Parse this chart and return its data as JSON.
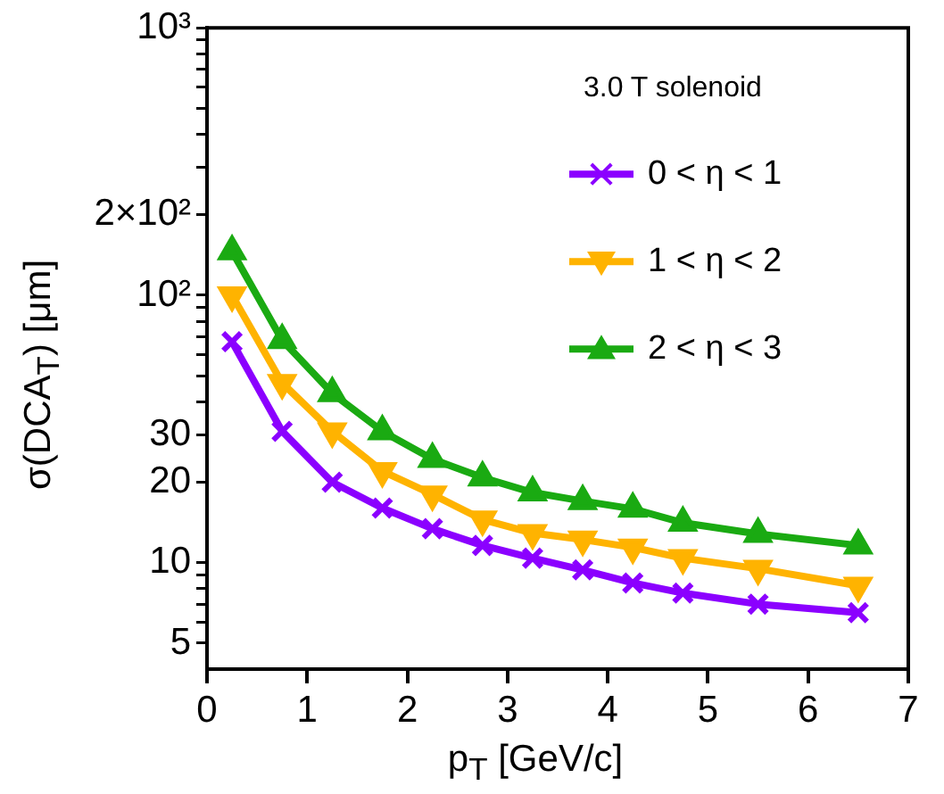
{
  "chart_data": {
    "type": "line",
    "xlabel": "p$_{T}$ [GeV/c]",
    "ylabel": "σ(DCA$_{T}$) [μm]",
    "legend_title": "3.0 T solenoid",
    "legend": "top right",
    "grid": false,
    "log": "y",
    "line_style": "solid",
    "x": [
      0.25,
      0.75,
      1.25,
      1.75,
      2.25,
      2.75,
      3.25,
      3.75,
      4.25,
      4.75,
      5.5,
      6.5
    ],
    "xlim": [
      0,
      7
    ],
    "xticks": [
      0,
      1,
      2,
      3,
      4,
      5,
      6,
      7
    ],
    "ylim": [
      4,
      1000
    ],
    "yticks": [
      5,
      {
        "value": 6,
        "label": null
      },
      {
        "value": 7,
        "label": null
      },
      {
        "value": 8,
        "label": null
      },
      {
        "value": 9,
        "label": null
      },
      10,
      20,
      30,
      {
        "value": 40,
        "label": null
      },
      {
        "value": 50,
        "label": null
      },
      {
        "value": 60,
        "label": null
      },
      {
        "value": 70,
        "label": null
      },
      {
        "value": 80,
        "label": null
      },
      {
        "value": 90,
        "label": null
      },
      {
        "value": 100,
        "label": "10²"
      },
      {
        "value": 200,
        "label": "2×10²"
      },
      {
        "value": 300,
        "label": null
      },
      {
        "value": 400,
        "label": null
      },
      {
        "value": 500,
        "label": null
      },
      {
        "value": 600,
        "label": null
      },
      {
        "value": 700,
        "label": null
      },
      {
        "value": 800,
        "label": null
      },
      {
        "value": 900,
        "label": null
      },
      {
        "value": 1000,
        "label": "10³"
      }
    ],
    "series": [
      {
        "name": "0 < η < 1",
        "color": "#8b00ff",
        "marker": "cross",
        "values": [
          67,
          31,
          20,
          16,
          13.4,
          11.6,
          10.4,
          9.4,
          8.4,
          7.7,
          7,
          6.5
        ]
      },
      {
        "name": "1 < η < 2",
        "color": "#ffb300",
        "marker": "triangle-down",
        "values": [
          100,
          47,
          31,
          22,
          18,
          14.5,
          12.9,
          12.2,
          11.4,
          10.4,
          9.5,
          8.2
        ]
      },
      {
        "name": "2 < η < 3",
        "color": "#1aaa12",
        "marker": "triangle",
        "values": [
          146,
          68,
          43,
          31,
          24.4,
          20.8,
          18.3,
          17,
          15.9,
          14.1,
          12.8,
          11.6
        ]
      }
    ]
  }
}
